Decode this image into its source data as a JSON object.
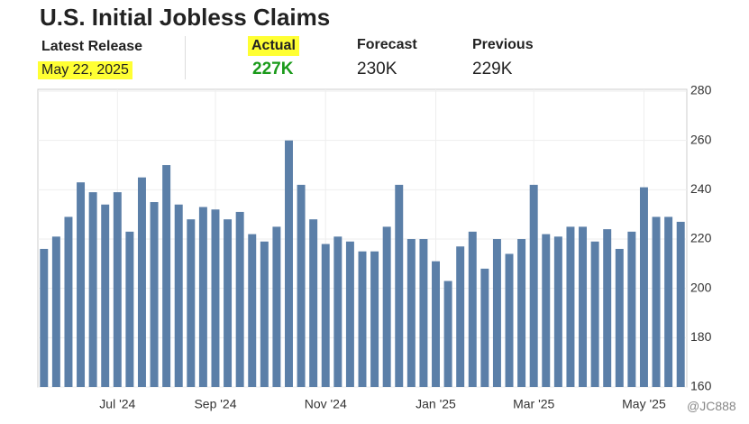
{
  "header": {
    "title": "U.S. Initial Jobless Claims",
    "release_label": "Latest Release",
    "release_date": "May 22, 2025",
    "actual_label": "Actual",
    "actual_value": "227K",
    "forecast_label": "Forecast",
    "forecast_value": "230K",
    "previous_label": "Previous",
    "previous_value": "229K",
    "watermark": "@JC888"
  },
  "chart_data": {
    "type": "bar",
    "color": "#5b7fa8",
    "grid": true,
    "categories": [
      null,
      null,
      null,
      null,
      null,
      null,
      "Jul '24",
      null,
      null,
      null,
      null,
      null,
      null,
      null,
      "Sep '24",
      null,
      null,
      null,
      null,
      null,
      null,
      null,
      null,
      "Nov '24",
      null,
      null,
      null,
      null,
      null,
      null,
      null,
      null,
      "Jan '25",
      null,
      null,
      null,
      null,
      null,
      null,
      null,
      "Mar '25",
      null,
      null,
      null,
      null,
      null,
      null,
      null,
      null,
      "May '25",
      null,
      null,
      null
    ],
    "values": [
      216,
      221,
      229,
      243,
      239,
      234,
      239,
      223,
      245,
      235,
      250,
      234,
      228,
      233,
      232,
      228,
      231,
      222,
      219,
      225,
      260,
      242,
      228,
      218,
      221,
      219,
      215,
      215,
      225,
      242,
      220,
      220,
      211,
      203,
      217,
      223,
      208,
      220,
      214,
      220,
      242,
      222,
      221,
      225,
      225,
      219,
      224,
      216,
      223,
      241,
      229,
      229,
      227
    ],
    "ylim": [
      160,
      280
    ],
    "yticks": [
      160,
      180,
      200,
      220,
      240,
      260,
      280
    ]
  }
}
